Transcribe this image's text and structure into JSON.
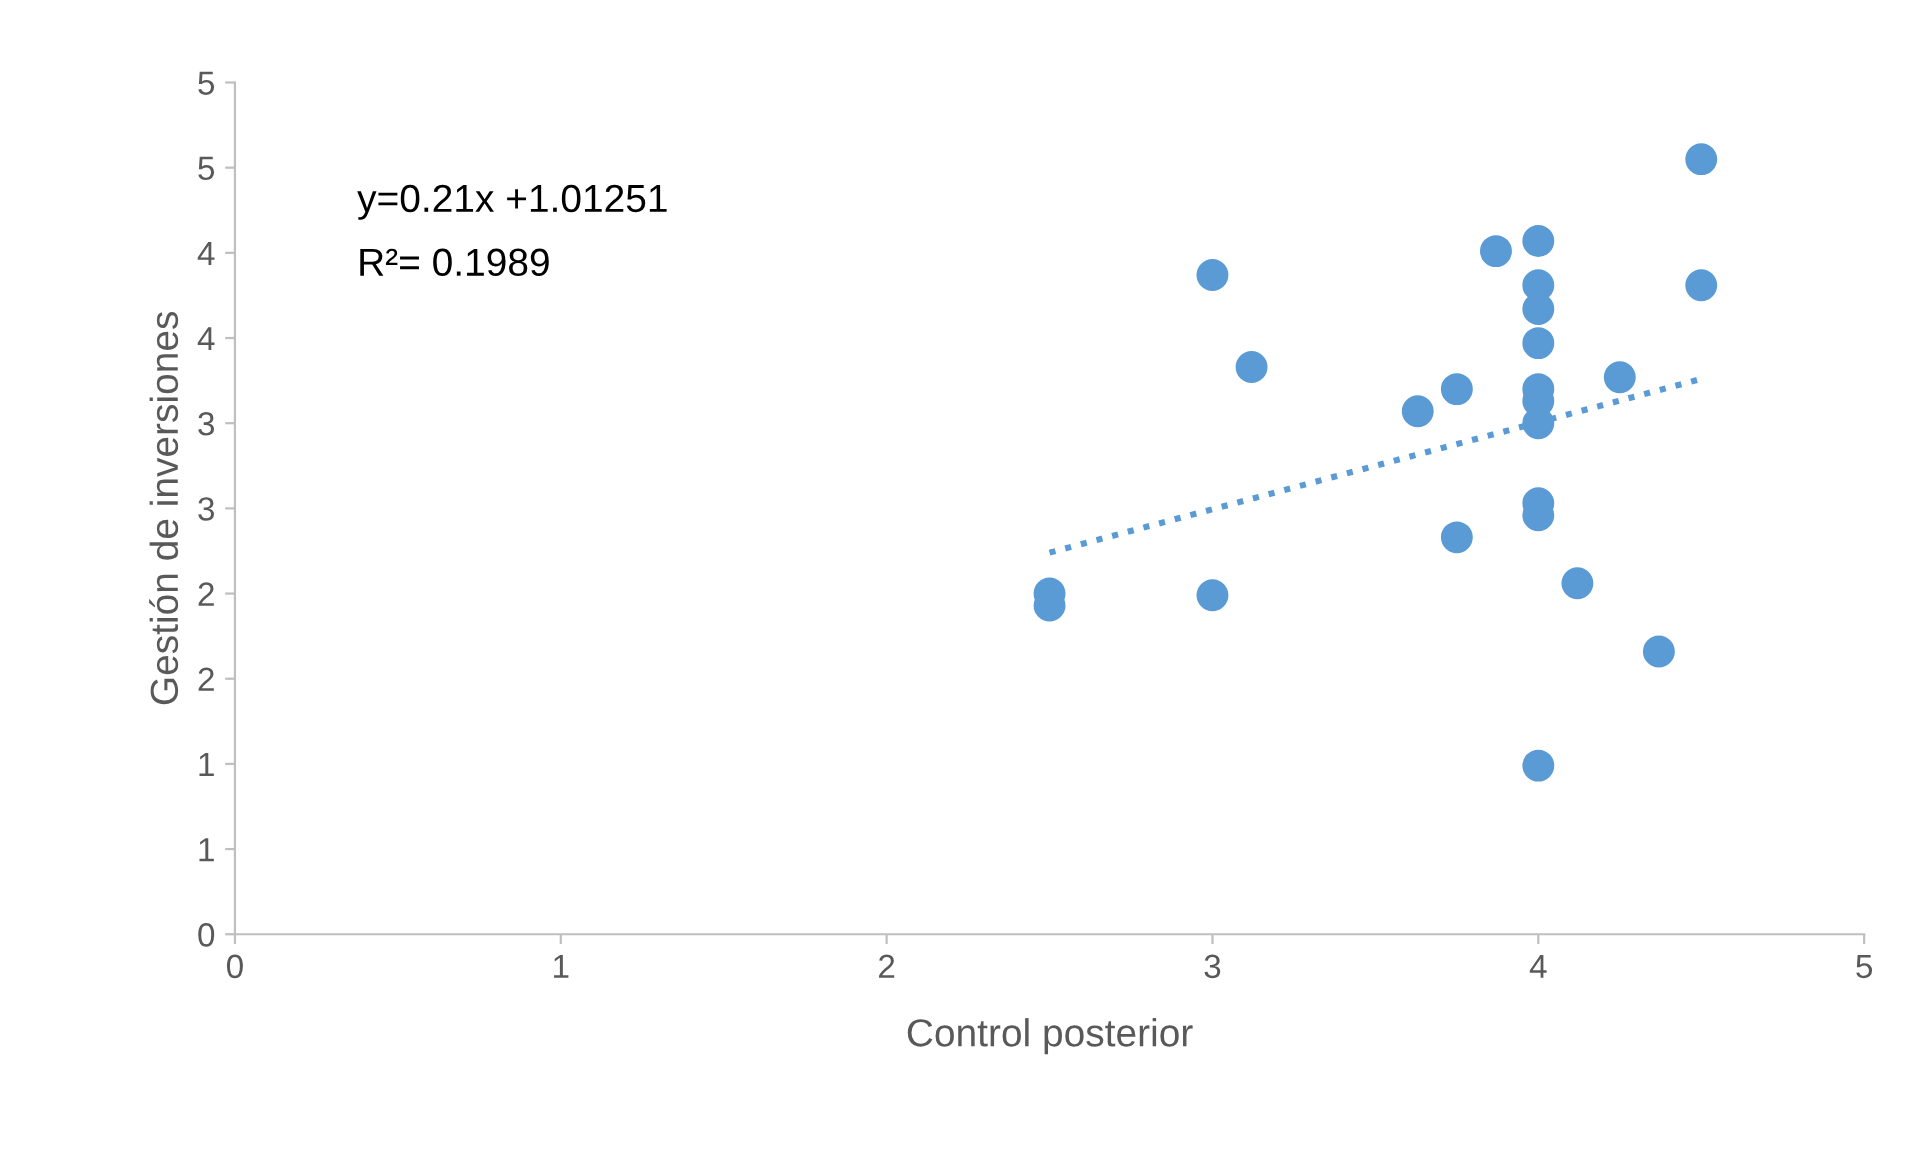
{
  "chart_data": {
    "type": "scatter",
    "xlabel": "Control posterior",
    "ylabel": "Gestión de inversiones",
    "annotations": [
      "y=0.21x +1.01251",
      "R²= 0.1989"
    ],
    "xlim": [
      0,
      5
    ],
    "xticks": [
      0,
      1,
      2,
      3,
      4,
      5
    ],
    "ylim": [
      0,
      5
    ],
    "yticks": [
      0,
      {
        "value": 0.5,
        "label": "1"
      },
      1,
      {
        "value": 1.5,
        "label": "2"
      },
      2,
      {
        "value": 2.5,
        "label": "3"
      },
      3,
      {
        "value": 3.5,
        "label": "4"
      },
      4,
      {
        "value": 4.5,
        "label": "5"
      },
      5
    ],
    "grid": false,
    "legend": false,
    "marker": "circle",
    "series": [
      {
        "color": "#5b9bd5",
        "x": [
          2.5,
          2.5,
          3.0,
          3.0,
          3.12,
          3.63,
          3.75,
          3.75,
          3.87,
          4.0,
          4.0,
          4.0,
          4.0,
          4.0,
          4.0,
          4.0,
          4.0,
          4.0,
          4.0,
          4.12,
          4.25,
          4.37,
          4.5,
          4.5
        ],
        "values": [
          2.0,
          1.93,
          3.87,
          1.99,
          3.33,
          3.07,
          3.2,
          2.33,
          4.01,
          4.07,
          3.81,
          3.67,
          3.47,
          3.2,
          3.13,
          3.0,
          2.53,
          2.46,
          0.99,
          2.06,
          3.27,
          1.66,
          4.55,
          3.81
        ]
      },
      {
        "type": "line",
        "color": "#5b9bd5",
        "line_style": "dotted",
        "marker": "none",
        "x": [
          2.5,
          4.5
        ],
        "values": [
          2.24,
          3.26
        ]
      }
    ]
  }
}
